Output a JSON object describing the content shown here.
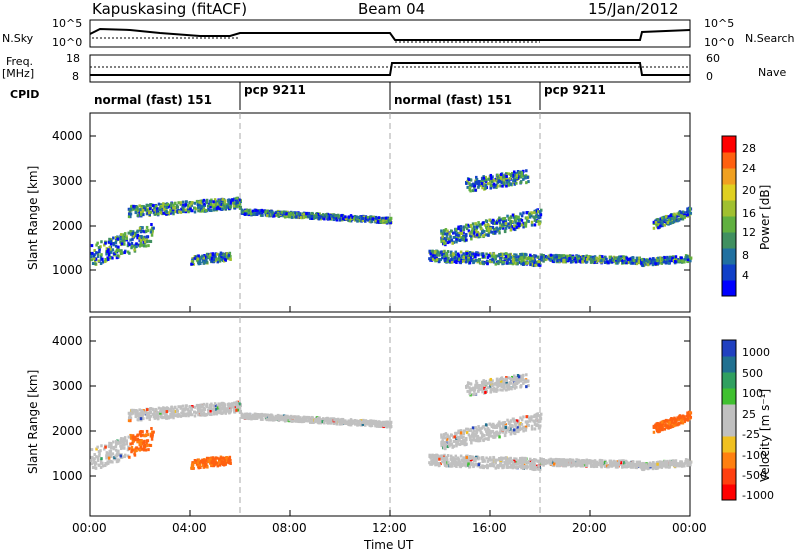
{
  "header": {
    "station": "Kapuskasing (fitACF)",
    "beam": "Beam 04",
    "date": "15/Jan/2012"
  },
  "left_labels": {
    "nsky": "N.Sky",
    "freq": "Freq.",
    "freq_unit": "[MHz]",
    "cpid": "CPID"
  },
  "right_labels": {
    "nsearch": "N.Search",
    "nave": "Nave"
  },
  "noise_axis": {
    "left_ticks": [
      "10^5",
      "10^0"
    ],
    "right_ticks": [
      "10^5",
      "10^0"
    ]
  },
  "freq_axis": {
    "left_ticks": [
      "18",
      "8"
    ],
    "right_ticks": [
      "60",
      "0"
    ]
  },
  "cpid_segments": [
    {
      "label": "normal (fast) 151",
      "start_hour": 0
    },
    {
      "label": "pcp 9211",
      "start_hour": 6
    },
    {
      "label": "normal (fast) 151",
      "start_hour": 12
    },
    {
      "label": "pcp 9211",
      "start_hour": 18
    }
  ],
  "x_axis": {
    "label": "Time UT",
    "ticks": [
      "00:00",
      "04:00",
      "08:00",
      "12:00",
      "16:00",
      "20:00",
      "00:00"
    ]
  },
  "power_panel": {
    "ylabel": "Slant Range [km]",
    "yticks": [
      "1000",
      "2000",
      "3000",
      "4000"
    ],
    "colorbar_label": "Power [dB]",
    "colorbar_ticks": [
      "4",
      "8",
      "12",
      "16",
      "20",
      "24",
      "28"
    ],
    "colors": [
      "#0000ff",
      "#1040c8",
      "#2070a0",
      "#409060",
      "#60b040",
      "#a0c030",
      "#e0d020",
      "#f0a020",
      "#ff6010",
      "#ff0000"
    ]
  },
  "velocity_panel": {
    "ylabel": "Slant Range [km]",
    "yticks": [
      "1000",
      "2000",
      "3000",
      "4000"
    ],
    "colorbar_label": "Velocity [m s⁻¹]",
    "colorbar_ticks": [
      "1000",
      "500",
      "100",
      "25",
      "-25",
      "-100",
      "-500",
      "-1000"
    ],
    "colors": [
      "#2040c0",
      "#207090",
      "#30a060",
      "#40c030",
      "#c0c0c0",
      "#c0c0c0",
      "#f0c020",
      "#ff8010",
      "#ff4010",
      "#ff0000"
    ]
  },
  "chart_data": {
    "type": "heatmap",
    "title": "Kapuskasing (fitACF)  Beam 04  15/Jan/2012",
    "xlabel": "Time UT",
    "ylabel": "Slant Range [km]",
    "xlim_hours": [
      0,
      24
    ],
    "ylim_km": [
      0,
      4500
    ],
    "cpid_changes_hours": [
      6,
      12,
      18
    ],
    "panels": [
      "Power [dB]",
      "Velocity [m s-1]"
    ]
  }
}
